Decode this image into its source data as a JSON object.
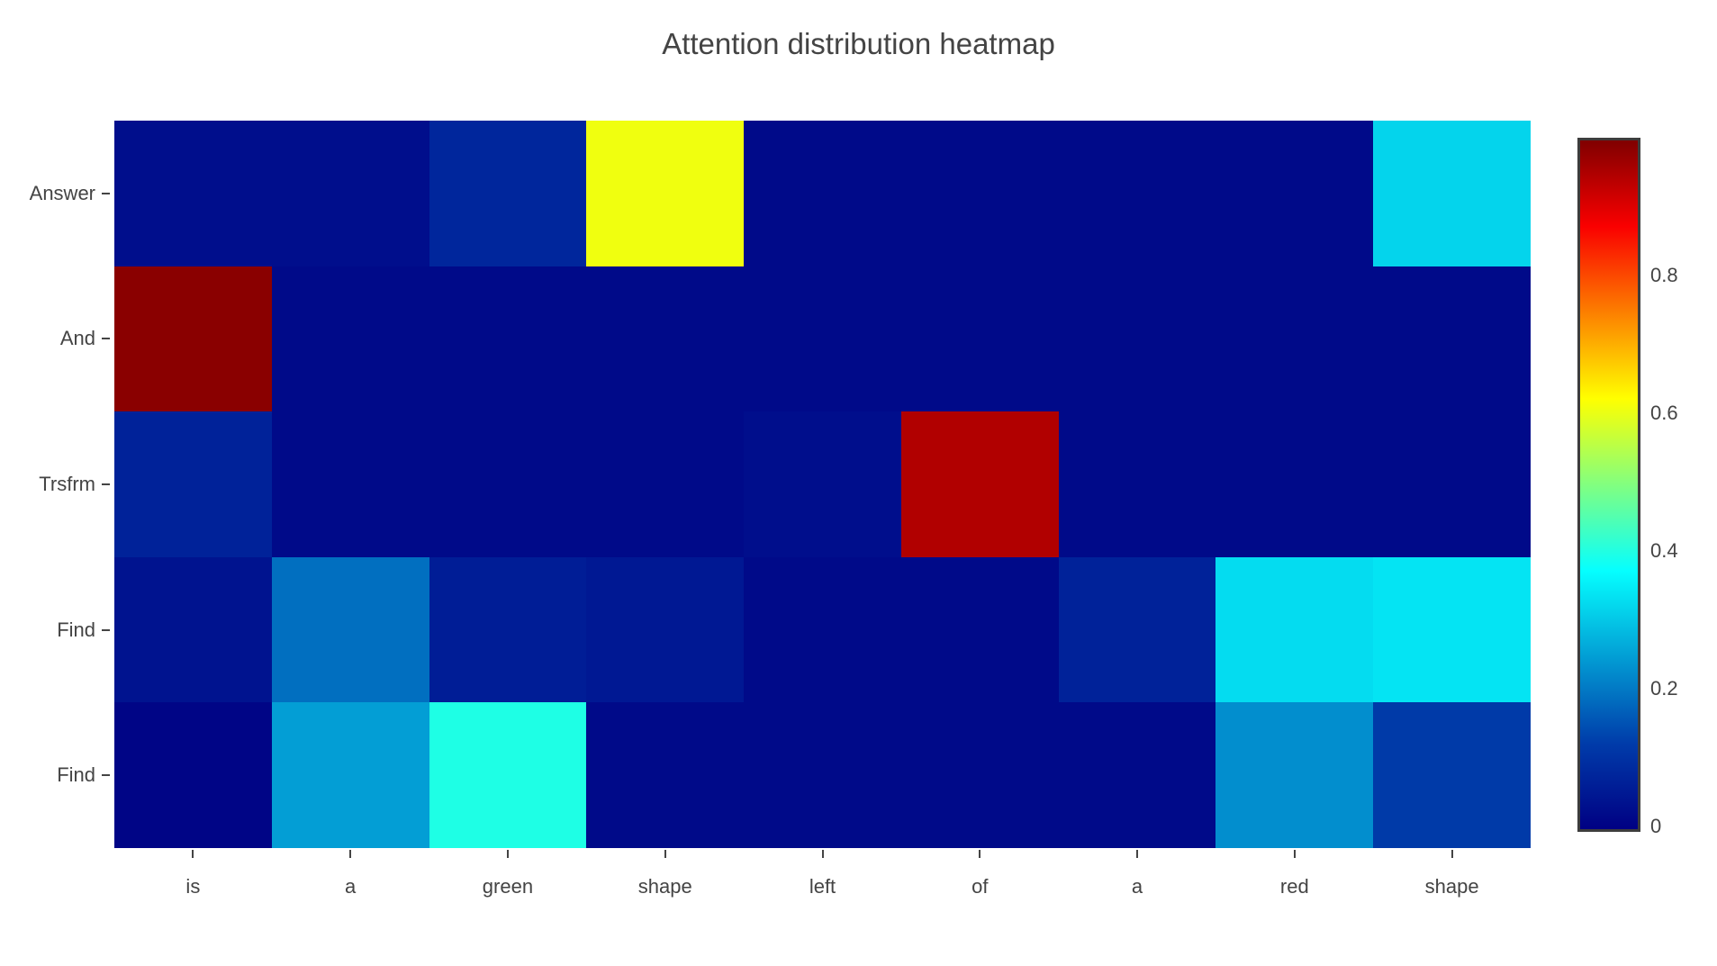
{
  "title": "Attention distribution heatmap",
  "styles": {
    "text_color": "#444444",
    "tick_color": "#444444",
    "colorbar_border_color": "#3d3d3d",
    "background": "#ffffff"
  },
  "chart_data": {
    "type": "heatmap",
    "title": "Attention distribution heatmap",
    "x_labels": [
      "is",
      "a",
      "green",
      "shape",
      "left",
      "of",
      "a",
      "red",
      "shape"
    ],
    "y_labels": [
      "Answer",
      "And",
      "Trsfrm",
      "Find",
      "Find"
    ],
    "rows": [
      {
        "label": "Answer",
        "values": [
          0.03,
          0.03,
          0.08,
          0.61,
          0.02,
          0.02,
          0.02,
          0.02,
          0.32
        ]
      },
      {
        "label": "And",
        "values": [
          0.99,
          0.02,
          0.02,
          0.02,
          0.02,
          0.02,
          0.02,
          0.02,
          0.02
        ]
      },
      {
        "label": "Trsfrm",
        "values": [
          0.07,
          0.02,
          0.02,
          0.02,
          0.03,
          0.95,
          0.02,
          0.02,
          0.02
        ]
      },
      {
        "label": "Find",
        "values": [
          0.04,
          0.19,
          0.06,
          0.05,
          0.02,
          0.02,
          0.07,
          0.33,
          0.34
        ]
      },
      {
        "label": "Find",
        "values": [
          0.01,
          0.25,
          0.4,
          0.02,
          0.02,
          0.02,
          0.02,
          0.23,
          0.12
        ]
      }
    ],
    "zmin": 0,
    "zmax": 1.0,
    "colorscale_name": "jet",
    "colorscale": [
      [
        0,
        "rgb(0,0,131)"
      ],
      [
        0.125,
        "rgb(0,60,170)"
      ],
      [
        0.375,
        "rgb(5,255,255)"
      ],
      [
        0.625,
        "rgb(255,255,0)"
      ],
      [
        0.875,
        "rgb(250,0,0)"
      ],
      [
        1,
        "rgb(128,0,0)"
      ]
    ],
    "colorbar": {
      "position": "right",
      "ticks": [
        "0",
        "0.2",
        "0.4",
        "0.6",
        "0.8"
      ]
    },
    "grid": false,
    "legend_position": "right"
  }
}
